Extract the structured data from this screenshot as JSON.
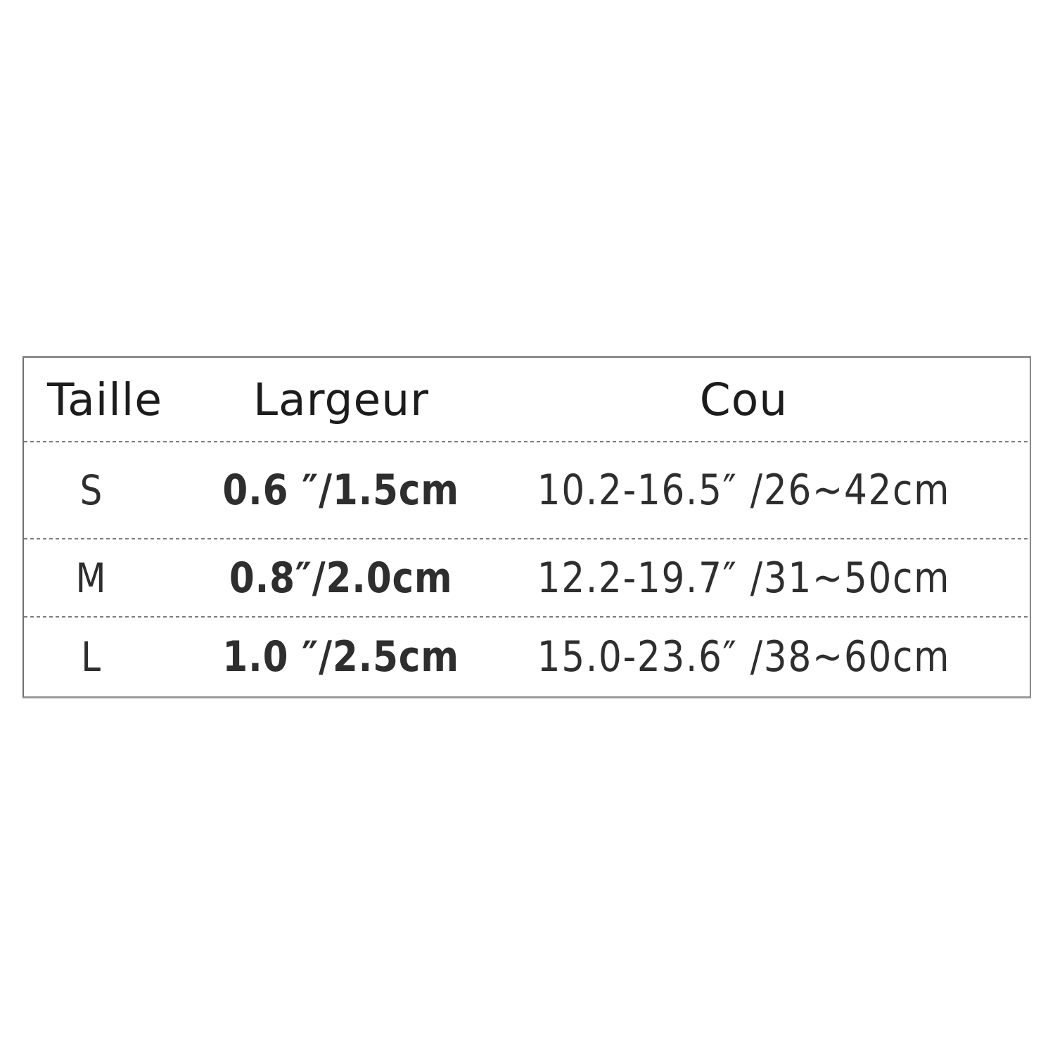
{
  "page": {
    "background_color": "#ffffff",
    "text_color": "#2e2e2e",
    "border_color": "#8e8e8e",
    "divider_color": "#7d7d7d"
  },
  "size_chart": {
    "headers": {
      "size": "Taille",
      "width": "Largeur",
      "neck": "Cou"
    },
    "rows": [
      {
        "size": "S",
        "width": "0.6 ″/1.5cm",
        "neck": "10.2-16.5″  /26~42cm"
      },
      {
        "size": "M",
        "width": "0.8″/2.0cm",
        "neck": "12.2-19.7″  /31~50cm"
      },
      {
        "size": "L",
        "width": "1.0 ″/2.5cm",
        "neck": "15.0-23.6″  /38~60cm"
      }
    ]
  }
}
